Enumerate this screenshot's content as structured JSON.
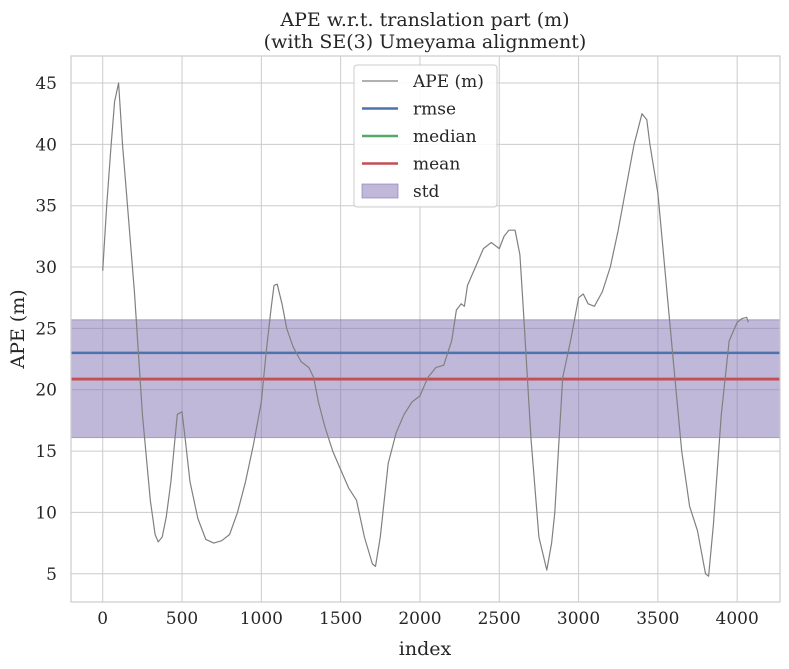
{
  "chart_data": {
    "type": "line",
    "title_lines": [
      "APE w.r.t. translation part (m)",
      "(with SE(3) Umeyama alignment)"
    ],
    "xlabel": "index",
    "ylabel": "APE (m)",
    "xlim": [
      -200,
      4270
    ],
    "ylim": [
      2.7,
      47.2
    ],
    "xticks": [
      0,
      500,
      1000,
      1500,
      2000,
      2500,
      3000,
      3500,
      4000
    ],
    "yticks": [
      5,
      10,
      15,
      20,
      25,
      30,
      35,
      40,
      45
    ],
    "grid": true,
    "legend_position": "top-center",
    "legend": [
      {
        "label": "APE (m)",
        "kind": "line",
        "color": "#808080"
      },
      {
        "label": "rmse",
        "kind": "line",
        "color": "#4c72b0"
      },
      {
        "label": "median",
        "kind": "line",
        "color": "#55a868"
      },
      {
        "label": "mean",
        "kind": "line",
        "color": "#c44e52"
      },
      {
        "label": "std",
        "kind": "patch",
        "color": "#8172b2"
      }
    ],
    "stats": {
      "rmse": 23.0,
      "median": 20.9,
      "mean": 20.85,
      "std_band": [
        16.1,
        25.7
      ]
    },
    "series": [
      {
        "name": "APE (m)",
        "color": "#808080",
        "x": [
          0,
          25,
          50,
          75,
          100,
          125,
          150,
          200,
          250,
          300,
          330,
          350,
          375,
          400,
          430,
          470,
          500,
          520,
          550,
          600,
          650,
          700,
          750,
          800,
          850,
          900,
          950,
          1000,
          1030,
          1060,
          1080,
          1100,
          1130,
          1160,
          1200,
          1250,
          1300,
          1330,
          1360,
          1400,
          1450,
          1500,
          1550,
          1600,
          1650,
          1700,
          1720,
          1750,
          1800,
          1850,
          1900,
          1950,
          2000,
          2050,
          2100,
          2150,
          2200,
          2230,
          2260,
          2280,
          2300,
          2350,
          2400,
          2450,
          2500,
          2530,
          2560,
          2600,
          2630,
          2650,
          2700,
          2750,
          2800,
          2830,
          2850,
          2900,
          2950,
          3000,
          3030,
          3060,
          3100,
          3150,
          3200,
          3250,
          3300,
          3350,
          3400,
          3430,
          3450,
          3500,
          3550,
          3600,
          3650,
          3700,
          3750,
          3800,
          3820,
          3850,
          3900,
          3950,
          4000,
          4030,
          4060,
          4070
        ],
        "values": [
          29.7,
          35.0,
          39.5,
          43.5,
          45.0,
          40.0,
          36.0,
          28.0,
          18.0,
          11.0,
          8.2,
          7.6,
          8.0,
          9.6,
          12.5,
          18.0,
          18.2,
          16.0,
          12.5,
          9.5,
          7.8,
          7.5,
          7.7,
          8.2,
          10.0,
          12.5,
          15.5,
          19.0,
          23.0,
          26.5,
          28.5,
          28.6,
          27.0,
          25.0,
          23.5,
          22.3,
          21.8,
          21.0,
          19.0,
          17.0,
          15.0,
          13.5,
          12.0,
          11.0,
          8.0,
          5.8,
          5.6,
          8.0,
          14.0,
          16.5,
          18.0,
          19.0,
          19.5,
          21.0,
          21.8,
          22.0,
          24.0,
          26.5,
          27.0,
          26.8,
          28.5,
          30.0,
          31.5,
          32.0,
          31.5,
          32.5,
          33.0,
          33.0,
          31.0,
          27.0,
          16.0,
          8.0,
          5.3,
          7.5,
          10.0,
          21.0,
          24.0,
          27.5,
          27.8,
          27.0,
          26.8,
          28.0,
          30.0,
          33.0,
          36.5,
          40.0,
          42.5,
          42.0,
          40.0,
          36.0,
          29.0,
          22.0,
          15.0,
          10.5,
          8.5,
          5.0,
          4.8,
          9.0,
          18.0,
          24.0,
          25.5,
          25.8,
          25.9,
          25.5
        ]
      }
    ]
  }
}
